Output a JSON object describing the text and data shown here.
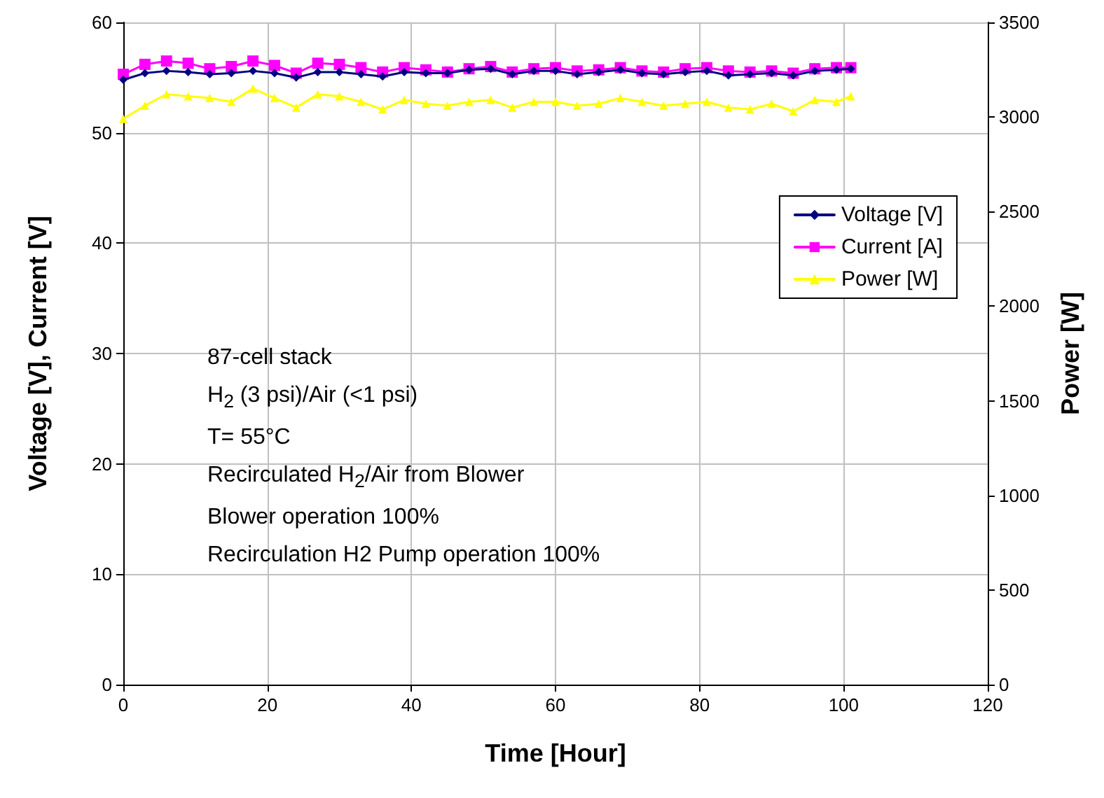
{
  "chart_data": {
    "type": "line",
    "xlabel": "Time [Hour]",
    "ylabel": "Voltage [V], Current [V]",
    "y2label": "Power [W]",
    "x": [
      0,
      3,
      6,
      9,
      12,
      15,
      18,
      21,
      24,
      27,
      30,
      33,
      36,
      39,
      42,
      45,
      48,
      51,
      54,
      57,
      60,
      63,
      66,
      69,
      72,
      75,
      78,
      81,
      84,
      87,
      90,
      93,
      96,
      99,
      101
    ],
    "series": [
      {
        "name": "Voltage [V]",
        "color": "#000080",
        "marker": "diamond",
        "values": [
          54.8,
          55.4,
          55.6,
          55.5,
          55.3,
          55.4,
          55.6,
          55.4,
          55.0,
          55.5,
          55.5,
          55.3,
          55.1,
          55.5,
          55.4,
          55.4,
          55.7,
          55.8,
          55.3,
          55.6,
          55.6,
          55.3,
          55.5,
          55.7,
          55.4,
          55.3,
          55.5,
          55.6,
          55.2,
          55.3,
          55.4,
          55.2,
          55.6,
          55.7,
          55.8
        ]
      },
      {
        "name": "Current [A]",
        "color": "#ff00ff",
        "marker": "square",
        "values": [
          55.3,
          56.2,
          56.5,
          56.3,
          55.8,
          56.0,
          56.5,
          56.1,
          55.4,
          56.3,
          56.2,
          55.9,
          55.5,
          55.9,
          55.7,
          55.5,
          55.8,
          56.0,
          55.5,
          55.8,
          55.9,
          55.6,
          55.7,
          55.9,
          55.6,
          55.5,
          55.8,
          55.9,
          55.6,
          55.5,
          55.6,
          55.4,
          55.8,
          55.9,
          55.9
        ]
      },
      {
        "name": "Power [W]",
        "color": "#ffff00",
        "marker": "triangle",
        "axis": "y2",
        "values": [
          2990,
          3060,
          3120,
          3110,
          3100,
          3080,
          3150,
          3100,
          3050,
          3120,
          3110,
          3080,
          3040,
          3090,
          3070,
          3060,
          3080,
          3090,
          3050,
          3080,
          3080,
          3060,
          3070,
          3100,
          3080,
          3060,
          3070,
          3080,
          3050,
          3040,
          3070,
          3030,
          3090,
          3080,
          3110
        ]
      }
    ],
    "xlim": [
      0,
      120
    ],
    "xticks": [
      0,
      20,
      40,
      60,
      80,
      100,
      120
    ],
    "ylim": [
      0,
      60
    ],
    "yticks": [
      0,
      10,
      20,
      30,
      40,
      50,
      60
    ],
    "y2lim": [
      0,
      3500
    ],
    "y2ticks": [
      0,
      500,
      1000,
      1500,
      2000,
      2500,
      3000,
      3500
    ],
    "grid": true,
    "legend": "right",
    "annotations": [
      "87-cell stack",
      "H$_{2}$ (3 psi)/Air (<1 psi)",
      "T= 55°C",
      "Recirculated H$_{2}$/Air from Blower",
      "Blower operation 100%",
      "Recirculation H2 Pump operation 100%"
    ]
  }
}
